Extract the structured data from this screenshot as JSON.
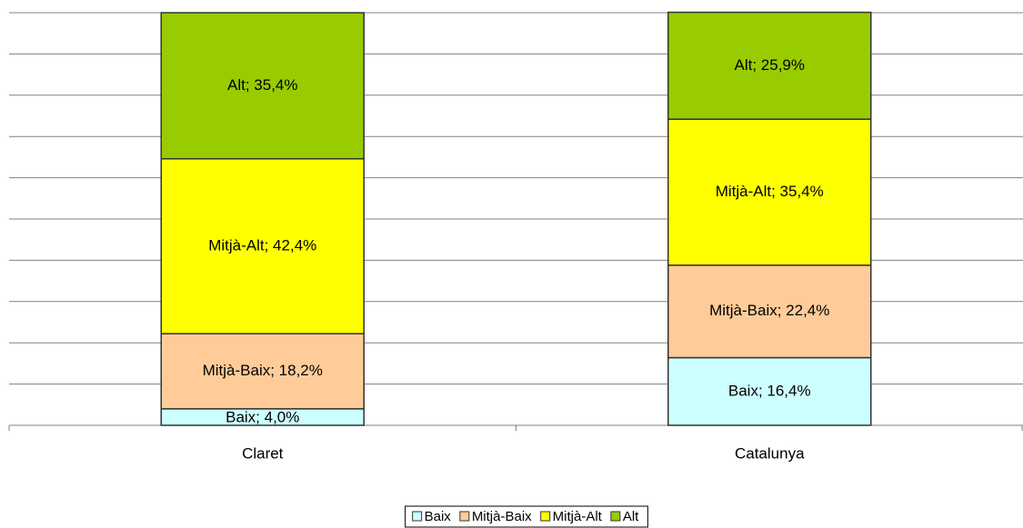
{
  "chart_data": {
    "type": "stacked_bar",
    "categories": [
      "Claret",
      "Catalunya"
    ],
    "series": [
      {
        "name": "Baix",
        "color": "#ccffff",
        "values": [
          4.0,
          16.4
        ],
        "value_labels": [
          "Baix; 4,0%",
          "Baix; 16,4%"
        ]
      },
      {
        "name": "Mitjà-Baix",
        "color": "#ffcc99",
        "values": [
          18.2,
          22.4
        ],
        "value_labels": [
          "Mitjà-Baix; 18,2%",
          "Mitjà-Baix; 22,4%"
        ]
      },
      {
        "name": "Mitjà-Alt",
        "color": "#ffff00",
        "values": [
          42.4,
          35.4
        ],
        "value_labels": [
          "Mitjà-Alt; 42,4%",
          "Mitjà-Alt; 35,4%"
        ]
      },
      {
        "name": "Alt",
        "color": "#99cc00",
        "values": [
          35.4,
          25.9
        ],
        "value_labels": [
          "Alt; 35,4%",
          "Alt; 25,9%"
        ]
      }
    ],
    "ylim": [
      0,
      100
    ],
    "yticks": [
      0,
      10,
      20,
      30,
      40,
      50,
      60,
      70,
      80,
      90,
      100
    ],
    "grid": true,
    "legend": "bottom"
  }
}
